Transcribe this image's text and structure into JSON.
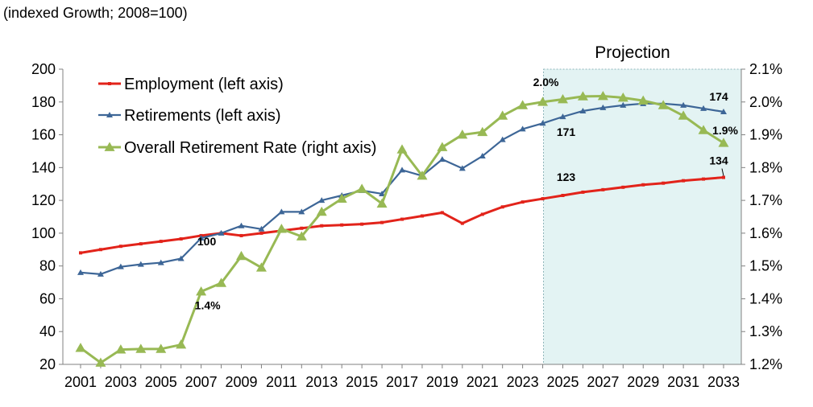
{
  "chart_data": {
    "type": "line",
    "title": "(indexed Growth; 2008=100)",
    "projection_label": "Projection",
    "projection_start_year": 2024,
    "x": [
      2001,
      2002,
      2003,
      2004,
      2005,
      2006,
      2007,
      2008,
      2009,
      2010,
      2011,
      2012,
      2013,
      2014,
      2015,
      2016,
      2017,
      2018,
      2019,
      2020,
      2021,
      2022,
      2023,
      2024,
      2025,
      2026,
      2027,
      2028,
      2029,
      2030,
      2031,
      2032,
      2033
    ],
    "xlim": [
      2001,
      2033
    ],
    "x_tick_labels": [
      "2001",
      "2003",
      "2005",
      "2007",
      "2009",
      "2011",
      "2013",
      "2015",
      "2017",
      "2019",
      "2021",
      "2023",
      "2025",
      "2027",
      "2029",
      "2031",
      "2033"
    ],
    "x_tick_values": [
      2001,
      2003,
      2005,
      2007,
      2009,
      2011,
      2013,
      2015,
      2017,
      2019,
      2021,
      2023,
      2025,
      2027,
      2029,
      2031,
      2033
    ],
    "ylim_left": [
      20,
      200
    ],
    "y_left_ticks": [
      "20",
      "40",
      "60",
      "80",
      "100",
      "120",
      "140",
      "160",
      "180",
      "200"
    ],
    "y_left_tick_values": [
      20,
      40,
      60,
      80,
      100,
      120,
      140,
      160,
      180,
      200
    ],
    "ylim_right": [
      1.2,
      2.1
    ],
    "y_right_ticks": [
      "1.2%",
      "1.3%",
      "1.4%",
      "1.5%",
      "1.6%",
      "1.7%",
      "1.8%",
      "1.9%",
      "2.0%",
      "2.1%"
    ],
    "y_right_tick_values": [
      1.2,
      1.3,
      1.4,
      1.5,
      1.6,
      1.7,
      1.8,
      1.9,
      2.0,
      2.1
    ],
    "series": [
      {
        "name": "Employment (left axis)",
        "axis": "left",
        "color": "#e2231a",
        "marker": "square",
        "values": [
          88,
          90,
          92,
          93.5,
          95,
          96.5,
          98.5,
          100,
          98.5,
          100,
          101.5,
          103,
          104.5,
          105,
          105.5,
          106.5,
          108.5,
          110.5,
          112.5,
          106,
          111.5,
          116,
          119,
          121,
          123,
          125,
          126.5,
          128,
          129.5,
          130.5,
          132,
          133,
          134
        ]
      },
      {
        "name": "Retirements (left axis)",
        "axis": "left",
        "color": "#3d6697",
        "marker": "triangle",
        "values": [
          76,
          75,
          79.5,
          81,
          82,
          84.5,
          97,
          100,
          104.5,
          102.5,
          113,
          113,
          120,
          123,
          126,
          124,
          138.5,
          135,
          145,
          139.5,
          147,
          157,
          163.5,
          167,
          171,
          174.5,
          176.5,
          178,
          179,
          179,
          178,
          176,
          174
        ]
      },
      {
        "name": "Overall Retirement Rate (right axis)",
        "axis": "right",
        "color": "#98b954",
        "marker": "triangle",
        "values": [
          1.25,
          1.205,
          1.245,
          1.247,
          1.247,
          1.26,
          1.422,
          1.448,
          1.53,
          1.495,
          1.613,
          1.59,
          1.665,
          1.705,
          1.735,
          1.69,
          1.855,
          1.775,
          1.862,
          1.9,
          1.908,
          1.958,
          1.99,
          2.0,
          2.008,
          2.017,
          2.018,
          2.013,
          2.004,
          1.99,
          1.958,
          1.914,
          1.875
        ]
      }
    ],
    "annotations": [
      {
        "text": "100",
        "x": 2008,
        "y": 100,
        "axis": "left",
        "pos": "below-left"
      },
      {
        "text": "1.4%",
        "x": 2007,
        "y": 1.422,
        "axis": "right",
        "pos": "below"
      },
      {
        "text": "2.0%",
        "x": 2024,
        "y": 2.0,
        "axis": "right",
        "pos": "above"
      },
      {
        "text": "171",
        "x": 2025,
        "y": 171,
        "axis": "left",
        "pos": "below"
      },
      {
        "text": "123",
        "x": 2025,
        "y": 123,
        "axis": "left",
        "pos": "above"
      },
      {
        "text": "174",
        "x": 2033,
        "y": 174,
        "axis": "left",
        "pos": "above"
      },
      {
        "text": "1.9%",
        "x": 2033,
        "y": 1.914,
        "axis": "right",
        "pos": "right"
      },
      {
        "text": "134",
        "x": 2033,
        "y": 134,
        "axis": "left",
        "pos": "above"
      }
    ],
    "legend_position": "top-left",
    "grid": false
  }
}
